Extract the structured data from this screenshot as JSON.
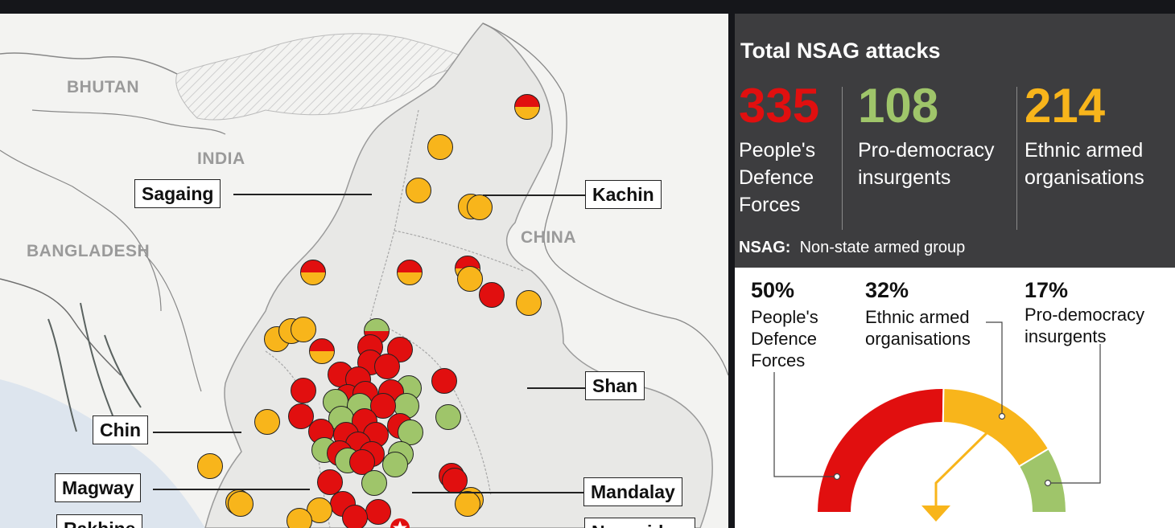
{
  "map": {
    "countries": {
      "bhutan": "BHUTAN",
      "india": "INDIA",
      "bangladesh": "BANGLADESH",
      "china": "CHINA"
    },
    "regions": {
      "sagaing": "Sagaing",
      "kachin": "Kachin",
      "shan": "Shan",
      "chin": "Chin",
      "magway": "Magway",
      "mandalay": "Mandalay",
      "rakhine": "Rakhine",
      "naypyidaw": "Naypyidaw"
    },
    "legend_colors": {
      "peoples_defence_forces": "#e10f0f",
      "ethnic_armed_organisations": "#f8b51b",
      "pro_democracy_insurgents": "#9fc56a"
    }
  },
  "panel": {
    "title": "Total NSAG attacks",
    "stats": [
      {
        "value": "335",
        "label": "People's Defence Forces",
        "color": "#e10f0f"
      },
      {
        "value": "108",
        "label": "Pro-democracy insurgents",
        "color": "#9fc56a"
      },
      {
        "value": "214",
        "label": "Ethnic armed organisations",
        "color": "#f8b51b"
      }
    ],
    "note_term": "NSAG:",
    "note_text": "Non-state armed group"
  },
  "shares": {
    "pdf": {
      "percent": "50%",
      "label": "People's Defence Forces",
      "value": 50
    },
    "eao": {
      "percent": "32%",
      "label": "Ethnic armed organisations",
      "value": 32
    },
    "pro": {
      "percent": "17%",
      "label": "Pro-democracy insurgents",
      "value": 17
    }
  }
}
